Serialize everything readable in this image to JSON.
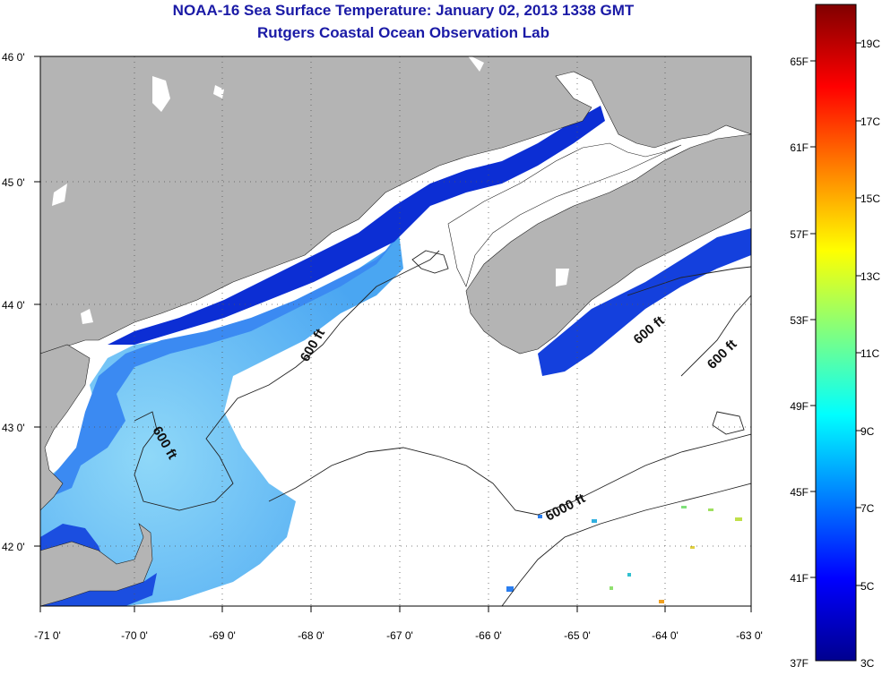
{
  "title": {
    "line1": "NOAA-16 Sea Surface Temperature:  January 02, 2013 1338 GMT",
    "line2": "Rutgers Coastal Ocean Observation Lab"
  },
  "map": {
    "lon_ticks": [
      "-71 0'",
      "-70 0'",
      "-69 0'",
      "-68 0'",
      "-67 0'",
      "-66 0'",
      "-65 0'",
      "-64 0'",
      "-63 0'"
    ],
    "lat_ticks": [
      "46 0'",
      "45 0'",
      "44 0'",
      "43 0'",
      "42 0'"
    ],
    "contour_labels": [
      "600 ft",
      "600 ft",
      "600 ft",
      "600 ft",
      "6000 ft"
    ],
    "colors": {
      "land": "#b4b4b4",
      "cold_water": "#0a2ad0",
      "mid_water": "#2f7cf0",
      "warm_water": "#7fd0f7",
      "no_data": "#ffffff"
    }
  },
  "colorbar": {
    "fahrenheit_labels": [
      "65F",
      "61F",
      "57F",
      "53F",
      "49F",
      "45F",
      "41F",
      "37F"
    ],
    "celsius_labels": [
      "19C",
      "17C",
      "15C",
      "13C",
      "11C",
      "9C",
      "7C",
      "5C",
      "3C"
    ],
    "gradient_stops": [
      "#00008f",
      "#0000ff",
      "#0080ff",
      "#00ffff",
      "#80ff80",
      "#ffff00",
      "#ff8000",
      "#ff0000",
      "#800000"
    ]
  }
}
